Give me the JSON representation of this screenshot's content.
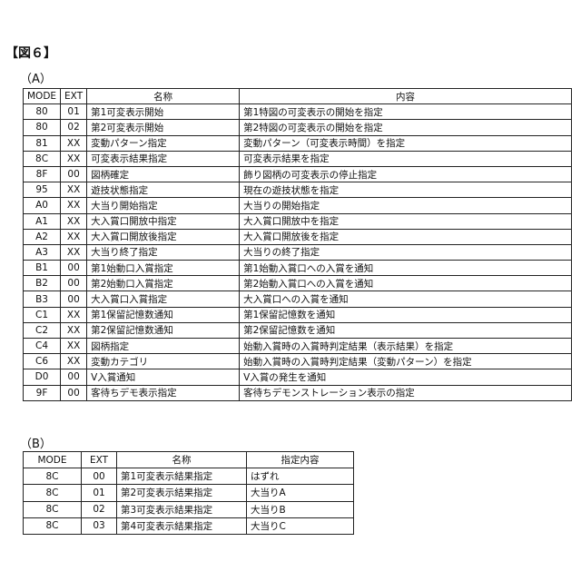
{
  "figure_label": "【図６】",
  "table_a": {
    "label": "（A）",
    "headers": [
      "MODE",
      "EXT",
      "名称",
      "内容"
    ],
    "rows": [
      [
        "80",
        "01",
        "第1可変表示開始",
        "第1特図の可変表示の開始を指定"
      ],
      [
        "80",
        "02",
        "第2可変表示開始",
        "第2特図の可変表示の開始を指定"
      ],
      [
        "81",
        "XX",
        "変動パターン指定",
        "変動パターン（可変表示時間）を指定"
      ],
      [
        "8C",
        "XX",
        "可変表示結果指定",
        "可変表示結果を指定"
      ],
      [
        "8F",
        "00",
        "図柄確定",
        "飾り図柄の可変表示の停止指定"
      ],
      [
        "95",
        "XX",
        "遊技状態指定",
        "現在の遊技状態を指定"
      ],
      [
        "A0",
        "XX",
        "大当り開始指定",
        "大当りの開始指定"
      ],
      [
        "A1",
        "XX",
        "大入賞口開放中指定",
        "大入賞口開放中を指定"
      ],
      [
        "A2",
        "XX",
        "大入賞口開放後指定",
        "大入賞口開放後を指定"
      ],
      [
        "A3",
        "XX",
        "大当り終了指定",
        "大当りの終了指定"
      ],
      [
        "B1",
        "00",
        "第1始動口入賞指定",
        "第1始動入賞口への入賞を通知"
      ],
      [
        "B2",
        "00",
        "第2始動口入賞指定",
        "第2始動入賞口への入賞を通知"
      ],
      [
        "B3",
        "00",
        "大入賞口入賞指定",
        "大入賞口への入賞を通知"
      ],
      [
        "C1",
        "XX",
        "第1保留記憶数通知",
        "第1保留記憶数を通知"
      ],
      [
        "C2",
        "XX",
        "第2保留記憶数通知",
        "第2保留記憶数を通知"
      ],
      [
        "C4",
        "XX",
        "図柄指定",
        "始動入賞時の入賞時判定結果（表示結果）を指定"
      ],
      [
        "C6",
        "XX",
        "変動カテゴリ",
        "始動入賞時の入賞時判定結果（変動パターン）を指定"
      ],
      [
        "D0",
        "00",
        "V入賞通知",
        "V入賞の発生を通知"
      ],
      [
        "9F",
        "00",
        "客待ちデモ表示指定",
        "客待ちデモンストレーション表示の指定"
      ]
    ]
  },
  "table_b": {
    "label": "（B）",
    "headers": [
      "MODE",
      "EXT",
      "名称",
      "指定内容"
    ],
    "rows": [
      [
        "8C",
        "00",
        "第1可変表示結果指定",
        "はずれ"
      ],
      [
        "8C",
        "01",
        "第2可変表示結果指定",
        "大当りA"
      ],
      [
        "8C",
        "02",
        "第3可変表示結果指定",
        "大当りB"
      ],
      [
        "8C",
        "03",
        "第4可変表示結果指定",
        "大当りC"
      ]
    ]
  }
}
